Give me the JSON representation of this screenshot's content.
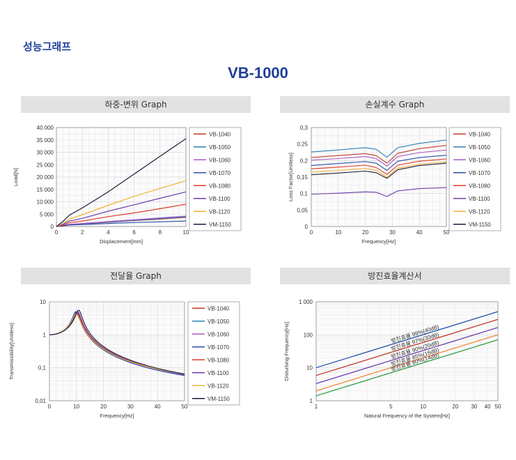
{
  "heading": "성능그래프",
  "title": "VB-1000",
  "legend_entries": [
    "VB-1040",
    "VB-1050",
    "VB-1060",
    "VB-1070",
    "VB-1080",
    "VB-1100",
    "VB-1120",
    "VM-1150"
  ],
  "colors": {
    "VB-1040": "#c0392b",
    "VB-1050": "#2c7fb8",
    "VB-1060": "#a85bc4",
    "VB-1070": "#2a4fa8",
    "VB-1080": "#e03a2a",
    "VB-1100": "#6a3fae",
    "VB-1120": "#f2b233",
    "VM-1150": "#1a1a3a",
    "accent": "#1f3f9a",
    "panel_bar": "#e2e2e2"
  },
  "chart_data": [
    {
      "id": "load",
      "type": "line",
      "panel_title": "하중-변위 Graph",
      "xlabel": "Displacement[mm]",
      "ylabel": "Load[N]",
      "xlim": [
        0,
        10
      ],
      "ylim": [
        0,
        40000
      ],
      "x_ticks": [
        "0",
        "2",
        "4",
        "6",
        "8",
        "10"
      ],
      "y_ticks": [
        "0",
        "5 000",
        "10 000",
        "15 000",
        "20 000",
        "25 000",
        "30 000",
        "35 000",
        "40 000"
      ],
      "grid": true,
      "legend_position": "right",
      "series": [
        {
          "name": "VB-1040",
          "points": [
            [
              0,
              0
            ],
            [
              0.5,
              250
            ],
            [
              1,
              700
            ],
            [
              2,
              1000
            ],
            [
              4,
              1700
            ],
            [
              6,
              2400
            ],
            [
              8,
              3000
            ],
            [
              10,
              3700
            ]
          ]
        },
        {
          "name": "VB-1050",
          "points": [
            [
              0,
              0
            ],
            [
              0.5,
              300
            ],
            [
              1,
              800
            ],
            [
              2,
              1100
            ],
            [
              4,
              1800
            ],
            [
              6,
              2500
            ],
            [
              8,
              3200
            ],
            [
              10,
              3900
            ]
          ]
        },
        {
          "name": "VB-1060",
          "points": [
            [
              0,
              0
            ],
            [
              0.5,
              350
            ],
            [
              1,
              900
            ],
            [
              2,
              1250
            ],
            [
              4,
              2000
            ],
            [
              6,
              2700
            ],
            [
              8,
              3500
            ],
            [
              10,
              4200
            ]
          ]
        },
        {
          "name": "VB-1070",
          "points": [
            [
              0,
              0
            ],
            [
              0.5,
              300
            ],
            [
              1,
              600
            ],
            [
              2,
              800
            ],
            [
              4,
              1200
            ],
            [
              6,
              1600
            ],
            [
              8,
              1900
            ],
            [
              10,
              2200
            ]
          ]
        },
        {
          "name": "VB-1080",
          "points": [
            [
              0,
              0
            ],
            [
              0.5,
              600
            ],
            [
              1,
              1500
            ],
            [
              2,
              2200
            ],
            [
              4,
              4000
            ],
            [
              6,
              5500
            ],
            [
              8,
              7200
            ],
            [
              10,
              9000
            ]
          ]
        },
        {
          "name": "VB-1100",
          "points": [
            [
              0,
              0
            ],
            [
              0.5,
              900
            ],
            [
              1,
              2200
            ],
            [
              2,
              3300
            ],
            [
              4,
              6200
            ],
            [
              6,
              8800
            ],
            [
              8,
              11400
            ],
            [
              10,
              14000
            ]
          ]
        },
        {
          "name": "VB-1120",
          "points": [
            [
              0,
              0
            ],
            [
              0.5,
              1200
            ],
            [
              1,
              3000
            ],
            [
              2,
              4800
            ],
            [
              4,
              8600
            ],
            [
              6,
              12200
            ],
            [
              8,
              15400
            ],
            [
              10,
              18500
            ]
          ]
        },
        {
          "name": "VM-1150",
          "points": [
            [
              0,
              0
            ],
            [
              0.5,
              2000
            ],
            [
              1,
              4600
            ],
            [
              2,
              7500
            ],
            [
              4,
              14000
            ],
            [
              6,
              21200
            ],
            [
              8,
              28400
            ],
            [
              10,
              35500
            ]
          ]
        }
      ]
    },
    {
      "id": "loss",
      "type": "line",
      "panel_title": "손실계수 Graph",
      "xlabel": "Frequency[Hz]",
      "ylabel": "Loss Factor[Unitless]",
      "xlim": [
        0,
        50
      ],
      "ylim": [
        0,
        0.3
      ],
      "x_ticks": [
        "0",
        "10",
        "20",
        "30",
        "40",
        "50"
      ],
      "y_ticks": [
        "0",
        "0,05",
        "0,1",
        "0,15",
        "0,2",
        "0,25",
        "0,3"
      ],
      "grid": true,
      "legend_position": "right",
      "series": [
        {
          "name": "VB-1040",
          "points": [
            [
              0,
              0.209
            ],
            [
              10,
              0.215
            ],
            [
              20,
              0.221
            ],
            [
              24,
              0.215
            ],
            [
              28,
              0.192
            ],
            [
              32,
              0.222
            ],
            [
              40,
              0.236
            ],
            [
              50,
              0.246
            ]
          ]
        },
        {
          "name": "VB-1050",
          "points": [
            [
              0,
              0.226
            ],
            [
              10,
              0.232
            ],
            [
              20,
              0.239
            ],
            [
              24,
              0.234
            ],
            [
              28,
              0.21
            ],
            [
              32,
              0.239
            ],
            [
              40,
              0.252
            ],
            [
              50,
              0.262
            ]
          ]
        },
        {
          "name": "VB-1060",
          "points": [
            [
              0,
              0.201
            ],
            [
              10,
              0.206
            ],
            [
              20,
              0.212
            ],
            [
              24,
              0.206
            ],
            [
              28,
              0.183
            ],
            [
              32,
              0.212
            ],
            [
              40,
              0.224
            ],
            [
              50,
              0.232
            ]
          ]
        },
        {
          "name": "VB-1070",
          "points": [
            [
              0,
              0.185
            ],
            [
              10,
              0.191
            ],
            [
              20,
              0.197
            ],
            [
              24,
              0.192
            ],
            [
              28,
              0.17
            ],
            [
              32,
              0.198
            ],
            [
              40,
              0.209
            ],
            [
              50,
              0.216
            ]
          ]
        },
        {
          "name": "VB-1080",
          "points": [
            [
              0,
              0.175
            ],
            [
              10,
              0.18
            ],
            [
              20,
              0.186
            ],
            [
              24,
              0.179
            ],
            [
              28,
              0.158
            ],
            [
              32,
              0.186
            ],
            [
              40,
              0.198
            ],
            [
              50,
              0.205
            ]
          ]
        },
        {
          "name": "VB-1100",
          "points": [
            [
              0,
              0.098
            ],
            [
              10,
              0.101
            ],
            [
              20,
              0.105
            ],
            [
              24,
              0.104
            ],
            [
              28,
              0.091
            ],
            [
              32,
              0.108
            ],
            [
              40,
              0.115
            ],
            [
              50,
              0.118
            ]
          ]
        },
        {
          "name": "VB-1120",
          "points": [
            [
              0,
              0.165
            ],
            [
              10,
              0.17
            ],
            [
              20,
              0.176
            ],
            [
              24,
              0.17
            ],
            [
              28,
              0.15
            ],
            [
              32,
              0.177
            ],
            [
              40,
              0.189
            ],
            [
              50,
              0.196
            ]
          ]
        },
        {
          "name": "VM-1150",
          "points": [
            [
              0,
              0.157
            ],
            [
              10,
              0.162
            ],
            [
              20,
              0.168
            ],
            [
              24,
              0.163
            ],
            [
              28,
              0.146
            ],
            [
              32,
              0.172
            ],
            [
              40,
              0.185
            ],
            [
              50,
              0.192
            ]
          ]
        }
      ]
    },
    {
      "id": "trans",
      "type": "line",
      "panel_title": "전달율 Graph",
      "xlabel": "Frequency[Hz]",
      "ylabel": "Transmissibility[Unitless]",
      "xlim": [
        0,
        50
      ],
      "ylim": [
        0.01,
        10
      ],
      "yscale": "log",
      "x_ticks": [
        "0",
        "10",
        "20",
        "30",
        "40",
        "50"
      ],
      "y_ticks": [
        "0,01",
        "0,1",
        "1",
        "10"
      ],
      "grid": true,
      "legend_position": "right",
      "series": [
        {
          "name": "VB-1040",
          "fn": 10.5,
          "zeta": 0.1
        },
        {
          "name": "VB-1050",
          "fn": 10.2,
          "zeta": 0.11
        },
        {
          "name": "VB-1060",
          "fn": 10.0,
          "zeta": 0.1
        },
        {
          "name": "VB-1070",
          "fn": 9.9,
          "zeta": 0.1
        },
        {
          "name": "VB-1080",
          "fn": 10.3,
          "zeta": 0.11
        },
        {
          "name": "VB-1100",
          "fn": 10.4,
          "zeta": 0.1
        },
        {
          "name": "VB-1120",
          "fn": 10.0,
          "zeta": 0.12
        },
        {
          "name": "VM-1150",
          "fn": 10.9,
          "zeta": 0.09
        }
      ]
    },
    {
      "id": "iso",
      "type": "line",
      "panel_title": "방진효율계산서",
      "xlabel": "Natural Frequency of the System[Hz]",
      "ylabel": "Disturbing Frequency[Hz]",
      "xscale": "log",
      "yscale": "log",
      "xlim": [
        1,
        50
      ],
      "ylim": [
        1,
        1000
      ],
      "x_ticks": [
        "1",
        "5",
        "10",
        "20",
        "30",
        "40",
        "50"
      ],
      "y_ticks": [
        "1",
        "10",
        "100",
        "1 000"
      ],
      "grid": true,
      "series": [
        {
          "name": "방진효율 99%(40dB)",
          "color": "#1f4fa8",
          "ratio": 10.05
        },
        {
          "name": "방진효율 97%(30dB)",
          "color": "#c0392b",
          "ratio": 5.85
        },
        {
          "name": "방진효율 90%(20dB)",
          "color": "#6a3fae",
          "ratio": 3.32
        },
        {
          "name": "방진효율 85%(16dB)",
          "color": "#f08a3a",
          "ratio": 2.0
        },
        {
          "name": "방진효율 80%(14dB)",
          "color": "#2e9e48",
          "ratio": 1.41
        }
      ]
    }
  ]
}
